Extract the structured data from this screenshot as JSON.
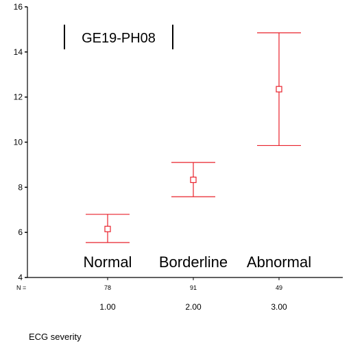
{
  "chart_data": {
    "type": "errorbar",
    "title": "GE19-PH08",
    "xlabel": "ECG severity",
    "ylabel": "",
    "ylim": [
      4,
      16
    ],
    "yticks": [
      "4",
      "6",
      "8",
      "10",
      "12",
      "14",
      "16"
    ],
    "n_prefix": "N =",
    "grid": false,
    "legend": "none",
    "error_color": "#e8202a",
    "categories": [
      "1.00",
      "2.00",
      "3.00"
    ],
    "group_labels": [
      "Normal",
      "Borderline",
      "Abnormal"
    ],
    "n": [
      "78",
      "91",
      "49"
    ],
    "series": [
      {
        "mean": [
          6.15,
          8.33,
          12.35
        ],
        "lower": [
          5.55,
          7.58,
          9.85
        ],
        "upper": [
          6.8,
          9.1,
          14.85
        ]
      }
    ]
  }
}
